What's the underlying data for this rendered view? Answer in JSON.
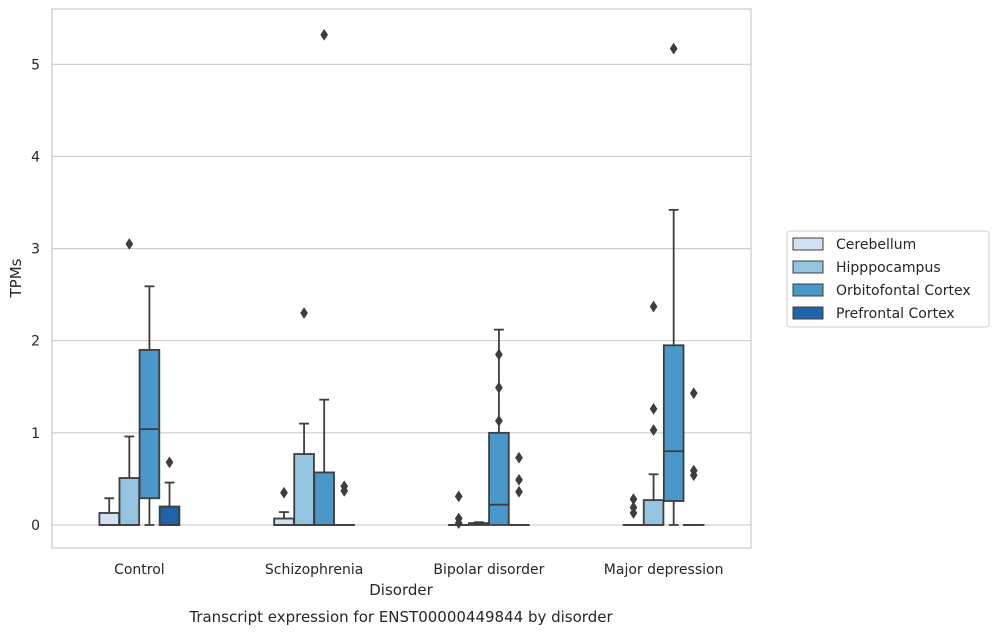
{
  "chart_data": {
    "type": "box",
    "caption": "Transcript expression for ENST00000449844 by disorder",
    "xlabel": "Disorder",
    "ylabel": "TPMs",
    "ylim": [
      -0.25,
      5.6
    ],
    "yticks": [
      0,
      1,
      2,
      3,
      4,
      5
    ],
    "grid": "horizontal",
    "legend_position": "right",
    "categories": [
      "Control",
      "Schizophrenia",
      "Bipolar disorder",
      "Major depression"
    ],
    "series": [
      {
        "name": "Cerebellum",
        "color": "#d0e1f2",
        "boxes": [
          {
            "whislo": 0,
            "q1": 0,
            "med": 0,
            "q3": 0.13,
            "whishi": 0.29,
            "fliers": []
          },
          {
            "whislo": 0,
            "q1": 0,
            "med": 0,
            "q3": 0.07,
            "whishi": 0.14,
            "fliers": [
              0.35
            ]
          },
          {
            "whislo": 0,
            "q1": 0,
            "med": 0,
            "q3": 0,
            "whishi": 0,
            "fliers": [
              0.02,
              0.07,
              0.31
            ]
          },
          {
            "whislo": 0,
            "q1": 0,
            "med": 0,
            "q3": 0,
            "whishi": 0,
            "fliers": [
              0.13,
              0.19,
              0.28
            ]
          }
        ]
      },
      {
        "name": "Hipppocampus",
        "color": "#94c4df",
        "boxes": [
          {
            "whislo": 0,
            "q1": 0,
            "med": 0,
            "q3": 0.51,
            "whishi": 0.96,
            "fliers": [
              3.05
            ]
          },
          {
            "whislo": 0,
            "q1": 0,
            "med": 0,
            "q3": 0.77,
            "whishi": 1.1,
            "fliers": [
              2.3
            ]
          },
          {
            "whislo": 0,
            "q1": 0,
            "med": 0.01,
            "q3": 0.02,
            "whishi": 0.03,
            "fliers": []
          },
          {
            "whislo": 0,
            "q1": 0,
            "med": 0,
            "q3": 0.27,
            "whishi": 0.55,
            "fliers": [
              1.03,
              1.26,
              2.37
            ]
          }
        ]
      },
      {
        "name": "Orbitofontal Cortex",
        "color": "#4a98c9",
        "boxes": [
          {
            "whislo": 0,
            "q1": 0.29,
            "med": 1.04,
            "q3": 1.9,
            "whishi": 2.59,
            "fliers": []
          },
          {
            "whislo": 0,
            "q1": 0,
            "med": 0,
            "q3": 0.57,
            "whishi": 1.36,
            "fliers": [
              5.32
            ]
          },
          {
            "whislo": 0,
            "q1": 0,
            "med": 0.22,
            "q3": 1.0,
            "whishi": 2.12,
            "fliers": [
              1.13,
              1.49,
              1.85
            ]
          },
          {
            "whislo": 0,
            "q1": 0.26,
            "med": 0.8,
            "q3": 1.95,
            "whishi": 3.42,
            "fliers": [
              5.17
            ]
          }
        ]
      },
      {
        "name": "Prefrontal Cortex",
        "color": "#2163aa",
        "boxes": [
          {
            "whislo": 0,
            "q1": 0,
            "med": 0,
            "q3": 0.2,
            "whishi": 0.46,
            "fliers": [
              0.68
            ]
          },
          {
            "whislo": 0,
            "q1": 0,
            "med": 0,
            "q3": 0,
            "whishi": 0,
            "fliers": [
              0.37,
              0.42
            ]
          },
          {
            "whislo": 0,
            "q1": 0,
            "med": 0,
            "q3": 0,
            "whishi": 0,
            "fliers": [
              0.36,
              0.49,
              0.73
            ]
          },
          {
            "whislo": 0,
            "q1": 0,
            "med": 0,
            "q3": 0,
            "whishi": 0,
            "fliers": [
              0.54,
              0.59,
              1.43
            ]
          }
        ]
      }
    ]
  }
}
